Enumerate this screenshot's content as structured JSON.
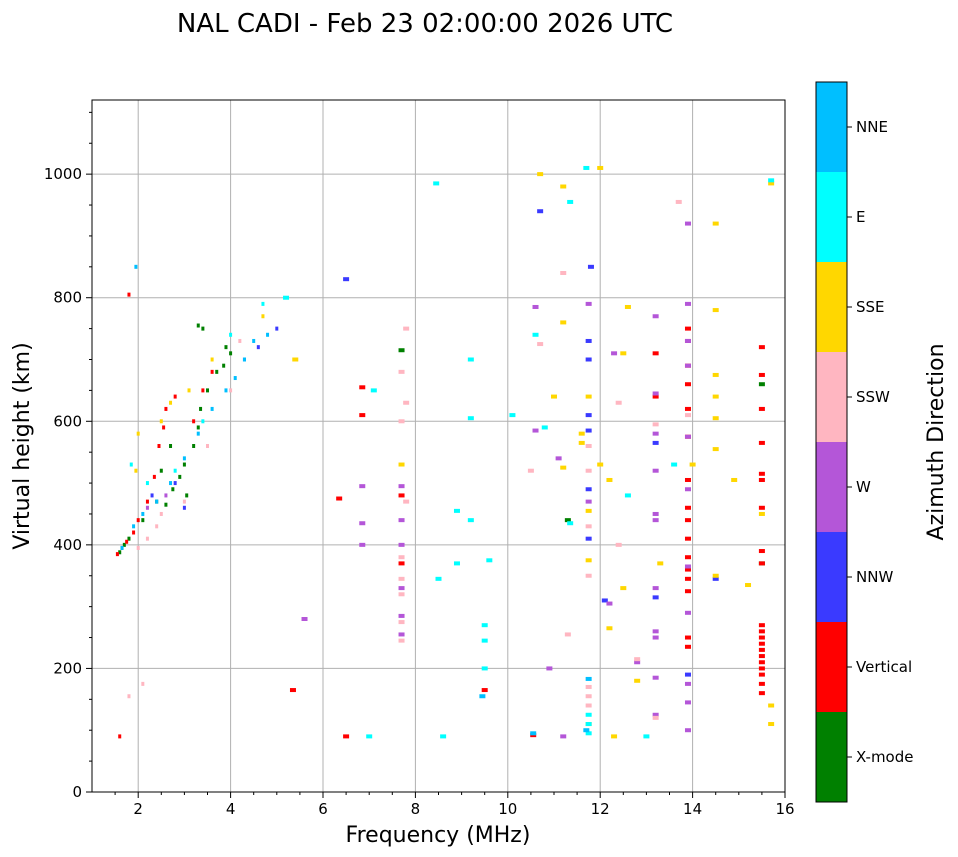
{
  "title": "NAL CADI - Feb 23 02:00:00 2026 UTC",
  "chart_data": {
    "type": "scatter",
    "title": "NAL CADI - Feb 23 02:00:00 2026 UTC",
    "xlabel": "Frequency (MHz)",
    "ylabel": "Virtual height (km)",
    "xlim": [
      1,
      16
    ],
    "ylim": [
      0,
      1120
    ],
    "xticks": [
      2,
      4,
      6,
      8,
      10,
      12,
      14,
      16
    ],
    "yticks": [
      0,
      200,
      400,
      600,
      800,
      1000
    ],
    "grid": true,
    "colorbar": {
      "label": "Azimuth Direction",
      "categories": [
        "X-mode",
        "Vertical",
        "NNW",
        "W",
        "SSW",
        "SSE",
        "E",
        "NNE"
      ],
      "colors": [
        "#008000",
        "#ff0000",
        "#3a3aff",
        "#b456d8",
        "#ffb6c1",
        "#ffd700",
        "#00ffff",
        "#00bfff"
      ]
    },
    "series": [
      {
        "name": "X-mode",
        "points": [
          [
            1.6,
            388
          ],
          [
            1.7,
            400
          ],
          [
            1.8,
            410
          ],
          [
            2.1,
            440
          ],
          [
            2.4,
            470
          ],
          [
            2.6,
            465
          ],
          [
            2.75,
            490
          ],
          [
            2.9,
            510
          ],
          [
            3.0,
            530
          ],
          [
            3.05,
            480
          ],
          [
            3.2,
            560
          ],
          [
            3.3,
            590
          ],
          [
            3.35,
            620
          ],
          [
            3.5,
            650
          ],
          [
            3.7,
            680
          ],
          [
            3.85,
            690
          ],
          [
            3.9,
            720
          ],
          [
            4.0,
            710
          ],
          [
            3.4,
            750
          ],
          [
            3.3,
            755
          ],
          [
            2.5,
            520
          ],
          [
            2.7,
            560
          ],
          [
            7.7,
            715
          ],
          [
            11.3,
            440
          ],
          [
            15.5,
            660
          ],
          [
            15.5,
            370
          ]
        ]
      },
      {
        "name": "Vertical",
        "points": [
          [
            1.55,
            385
          ],
          [
            1.65,
            395
          ],
          [
            1.75,
            405
          ],
          [
            1.9,
            420
          ],
          [
            2.0,
            440
          ],
          [
            2.2,
            470
          ],
          [
            2.35,
            510
          ],
          [
            2.45,
            560
          ],
          [
            2.55,
            590
          ],
          [
            2.6,
            620
          ],
          [
            2.8,
            640
          ],
          [
            3.2,
            600
          ],
          [
            3.4,
            650
          ],
          [
            3.6,
            680
          ],
          [
            1.8,
            805
          ],
          [
            1.6,
            90
          ],
          [
            5.35,
            165
          ],
          [
            6.5,
            90
          ],
          [
            6.35,
            475
          ],
          [
            6.85,
            655
          ],
          [
            6.85,
            610
          ],
          [
            7.7,
            480
          ],
          [
            7.7,
            370
          ],
          [
            9.5,
            165
          ],
          [
            10.55,
            92
          ],
          [
            13.2,
            710
          ],
          [
            13.2,
            640
          ],
          [
            13.9,
            750
          ],
          [
            13.9,
            730
          ],
          [
            13.9,
            690
          ],
          [
            13.9,
            660
          ],
          [
            13.9,
            620
          ],
          [
            13.9,
            575
          ],
          [
            13.9,
            505
          ],
          [
            13.9,
            460
          ],
          [
            13.9,
            440
          ],
          [
            13.9,
            410
          ],
          [
            13.9,
            380
          ],
          [
            13.9,
            360
          ],
          [
            13.9,
            345
          ],
          [
            13.9,
            325
          ],
          [
            13.9,
            250
          ],
          [
            13.9,
            235
          ],
          [
            15.5,
            720
          ],
          [
            15.5,
            675
          ],
          [
            15.5,
            620
          ],
          [
            15.5,
            565
          ],
          [
            15.5,
            515
          ],
          [
            15.5,
            505
          ],
          [
            15.5,
            460
          ],
          [
            15.5,
            390
          ],
          [
            15.5,
            370
          ],
          [
            15.5,
            270
          ],
          [
            15.5,
            260
          ],
          [
            15.5,
            250
          ],
          [
            15.5,
            240
          ],
          [
            15.5,
            230
          ],
          [
            15.5,
            220
          ],
          [
            15.5,
            210
          ],
          [
            15.5,
            200
          ],
          [
            15.5,
            190
          ],
          [
            15.5,
            175
          ],
          [
            15.5,
            160
          ]
        ]
      },
      {
        "name": "NNW",
        "points": [
          [
            2.3,
            480
          ],
          [
            2.8,
            500
          ],
          [
            3.0,
            460
          ],
          [
            4.3,
            700
          ],
          [
            4.6,
            720
          ],
          [
            5.0,
            750
          ],
          [
            6.5,
            830
          ],
          [
            10.7,
            940
          ],
          [
            11.8,
            850
          ],
          [
            11.75,
            730
          ],
          [
            11.75,
            700
          ],
          [
            11.75,
            610
          ],
          [
            11.75,
            585
          ],
          [
            11.75,
            490
          ],
          [
            11.75,
            410
          ],
          [
            12.1,
            310
          ],
          [
            13.2,
            565
          ],
          [
            13.2,
            315
          ],
          [
            14.5,
            345
          ],
          [
            13.9,
            190
          ]
        ]
      },
      {
        "name": "W",
        "points": [
          [
            2.2,
            460
          ],
          [
            2.6,
            480
          ],
          [
            5.6,
            280
          ],
          [
            6.85,
            495
          ],
          [
            6.85,
            435
          ],
          [
            6.85,
            400
          ],
          [
            7.7,
            495
          ],
          [
            7.7,
            440
          ],
          [
            7.7,
            400
          ],
          [
            7.7,
            330
          ],
          [
            7.7,
            285
          ],
          [
            7.7,
            255
          ],
          [
            10.6,
            785
          ],
          [
            10.6,
            585
          ],
          [
            11.1,
            540
          ],
          [
            10.9,
            200
          ],
          [
            11.2,
            90
          ],
          [
            11.75,
            790
          ],
          [
            11.75,
            470
          ],
          [
            12.3,
            710
          ],
          [
            12.2,
            305
          ],
          [
            13.2,
            770
          ],
          [
            13.2,
            645
          ],
          [
            13.2,
            580
          ],
          [
            13.2,
            520
          ],
          [
            13.2,
            450
          ],
          [
            13.2,
            440
          ],
          [
            13.2,
            330
          ],
          [
            13.2,
            260
          ],
          [
            13.2,
            250
          ],
          [
            13.2,
            185
          ],
          [
            13.2,
            125
          ],
          [
            13.9,
            920
          ],
          [
            13.9,
            790
          ],
          [
            13.9,
            730
          ],
          [
            13.9,
            690
          ],
          [
            13.9,
            575
          ],
          [
            13.9,
            490
          ],
          [
            13.9,
            365
          ],
          [
            13.9,
            290
          ],
          [
            13.9,
            175
          ],
          [
            13.9,
            145
          ],
          [
            13.9,
            100
          ],
          [
            12.8,
            210
          ]
        ]
      },
      {
        "name": "SSW",
        "points": [
          [
            2.0,
            395
          ],
          [
            2.2,
            410
          ],
          [
            2.4,
            430
          ],
          [
            2.5,
            450
          ],
          [
            3.0,
            470
          ],
          [
            3.5,
            560
          ],
          [
            4.0,
            650
          ],
          [
            4.2,
            730
          ],
          [
            1.8,
            155
          ],
          [
            2.1,
            175
          ],
          [
            7.7,
            680
          ],
          [
            7.8,
            750
          ],
          [
            7.8,
            630
          ],
          [
            7.7,
            600
          ],
          [
            7.8,
            470
          ],
          [
            7.7,
            380
          ],
          [
            7.7,
            345
          ],
          [
            7.7,
            320
          ],
          [
            7.7,
            275
          ],
          [
            7.7,
            245
          ],
          [
            10.7,
            725
          ],
          [
            10.5,
            520
          ],
          [
            11.2,
            840
          ],
          [
            11.3,
            255
          ],
          [
            11.75,
            560
          ],
          [
            11.75,
            520
          ],
          [
            11.75,
            430
          ],
          [
            11.75,
            350
          ],
          [
            11.75,
            170
          ],
          [
            11.75,
            155
          ],
          [
            11.75,
            140
          ],
          [
            12.4,
            630
          ],
          [
            12.4,
            400
          ],
          [
            13.2,
            595
          ],
          [
            13.9,
            610
          ],
          [
            13.7,
            955
          ],
          [
            13.2,
            120
          ],
          [
            12.8,
            215
          ]
        ]
      },
      {
        "name": "SSE",
        "points": [
          [
            1.95,
            520
          ],
          [
            2.0,
            580
          ],
          [
            2.5,
            600
          ],
          [
            2.7,
            630
          ],
          [
            3.1,
            650
          ],
          [
            3.6,
            700
          ],
          [
            4.7,
            770
          ],
          [
            5.4,
            700
          ],
          [
            7.7,
            530
          ],
          [
            10.7,
            1000
          ],
          [
            11.2,
            980
          ],
          [
            11.2,
            760
          ],
          [
            11.2,
            525
          ],
          [
            11.0,
            640
          ],
          [
            11.6,
            580
          ],
          [
            11.6,
            565
          ],
          [
            11.75,
            640
          ],
          [
            11.75,
            455
          ],
          [
            11.75,
            375
          ],
          [
            11.75,
            110
          ],
          [
            12.0,
            530
          ],
          [
            12.2,
            505
          ],
          [
            12.5,
            330
          ],
          [
            12.5,
            710
          ],
          [
            12.6,
            785
          ],
          [
            12.2,
            265
          ],
          [
            12.3,
            90
          ],
          [
            12.8,
            180
          ],
          [
            13.3,
            370
          ],
          [
            14.0,
            530
          ],
          [
            14.5,
            920
          ],
          [
            14.5,
            780
          ],
          [
            14.5,
            675
          ],
          [
            14.5,
            640
          ],
          [
            14.5,
            605
          ],
          [
            14.5,
            555
          ],
          [
            14.5,
            350
          ],
          [
            14.9,
            505
          ],
          [
            15.2,
            335
          ],
          [
            15.5,
            450
          ],
          [
            15.7,
            985
          ],
          [
            15.7,
            140
          ],
          [
            15.7,
            110
          ],
          [
            12.0,
            1010
          ]
        ]
      },
      {
        "name": "E",
        "points": [
          [
            1.85,
            530
          ],
          [
            2.2,
            500
          ],
          [
            2.8,
            520
          ],
          [
            3.4,
            600
          ],
          [
            4.0,
            740
          ],
          [
            4.7,
            790
          ],
          [
            5.2,
            800
          ],
          [
            7.1,
            650
          ],
          [
            7.0,
            90
          ],
          [
            8.45,
            985
          ],
          [
            8.9,
            455
          ],
          [
            8.9,
            370
          ],
          [
            9.2,
            700
          ],
          [
            9.2,
            605
          ],
          [
            9.2,
            440
          ],
          [
            8.6,
            90
          ],
          [
            8.5,
            345
          ],
          [
            9.5,
            270
          ],
          [
            9.6,
            375
          ],
          [
            9.5,
            245
          ],
          [
            9.5,
            200
          ],
          [
            10.1,
            610
          ],
          [
            10.8,
            590
          ],
          [
            11.35,
            955
          ],
          [
            11.35,
            435
          ],
          [
            11.7,
            1010
          ],
          [
            11.75,
            110
          ],
          [
            11.75,
            125
          ],
          [
            12.6,
            480
          ],
          [
            13.0,
            90
          ],
          [
            13.6,
            530
          ],
          [
            15.7,
            990
          ],
          [
            10.6,
            740
          ],
          [
            11.75,
            95
          ]
        ]
      },
      {
        "name": "NNE",
        "points": [
          [
            1.65,
            395
          ],
          [
            1.9,
            430
          ],
          [
            2.1,
            450
          ],
          [
            2.4,
            470
          ],
          [
            2.7,
            500
          ],
          [
            3.0,
            540
          ],
          [
            3.3,
            580
          ],
          [
            3.6,
            620
          ],
          [
            3.9,
            650
          ],
          [
            4.1,
            670
          ],
          [
            4.3,
            700
          ],
          [
            4.5,
            730
          ],
          [
            4.8,
            740
          ],
          [
            1.95,
            850
          ],
          [
            9.45,
            155
          ],
          [
            10.55,
            95
          ],
          [
            11.75,
            183
          ],
          [
            11.7,
            100
          ]
        ]
      }
    ]
  }
}
